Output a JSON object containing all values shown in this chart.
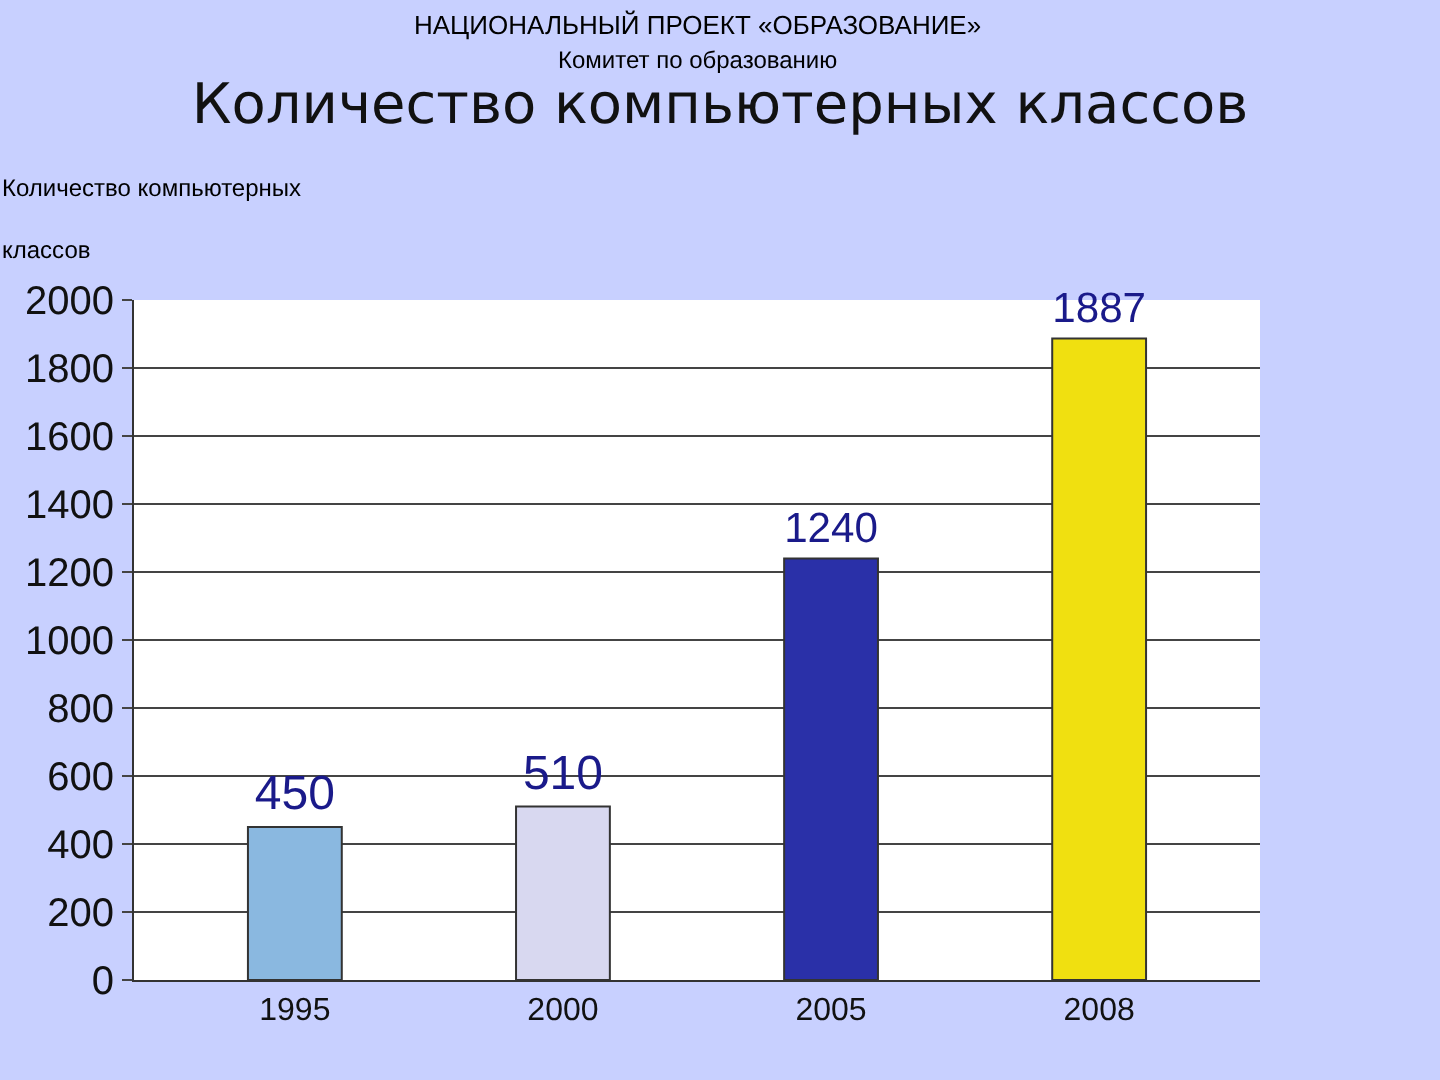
{
  "chart_data": {
    "type": "bar",
    "title": "Количество компьютерных классов",
    "ylabel": "Количество компьютерных классов",
    "annotations": [
      "НАЦИОНАЛЬНЫЙ ПРОЕКТ «ОБРАЗОВАНИЕ»",
      "Комитет по образованию"
    ],
    "categories": [
      "1995",
      "2000",
      "2005",
      "2008"
    ],
    "values": [
      450,
      510,
      1240,
      1887
    ],
    "colors": [
      "#8ab8e0",
      "#d8d8f0",
      "#2a30a8",
      "#f0e010"
    ],
    "ylim": [
      0,
      2000
    ],
    "yticks": [
      0,
      200,
      400,
      600,
      800,
      1000,
      1200,
      1400,
      1600,
      1800,
      2000
    ],
    "grid": "y",
    "data_labels": true
  }
}
